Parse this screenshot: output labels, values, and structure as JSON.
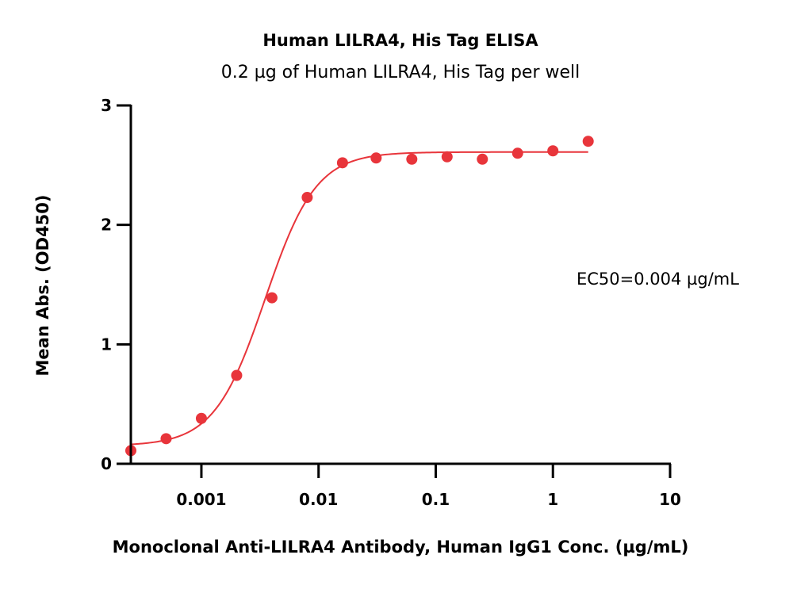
{
  "chart_data": {
    "type": "scatter",
    "title": "Human LILRA4, His Tag ELISA",
    "subtitle": "0.2 µg of Human LILRA4, His Tag per well",
    "xlabel": "Monoclonal Anti-LILRA4 Antibody, Human IgG1 Conc. (µg/mL)",
    "ylabel": "Mean Abs. (OD450)",
    "x_scale": "log",
    "xlim": [
      0.00025,
      10
    ],
    "ylim": [
      0,
      3
    ],
    "x_ticks": [
      0.001,
      0.01,
      0.1,
      1,
      10
    ],
    "x_tick_labels": [
      "0.001",
      "0.01",
      "0.1",
      "1",
      "10"
    ],
    "y_ticks": [
      0,
      1,
      2,
      3
    ],
    "y_tick_labels": [
      "0",
      "1",
      "2",
      "3"
    ],
    "annotation": "EC50=0.004 µg/mL",
    "color": "#e8353b",
    "x": [
      0.00025,
      0.0005,
      0.001,
      0.002,
      0.004,
      0.008,
      0.016,
      0.031,
      0.0625,
      0.125,
      0.25,
      0.5,
      1,
      2
    ],
    "y": [
      0.11,
      0.21,
      0.38,
      0.74,
      1.39,
      2.23,
      2.52,
      2.56,
      2.55,
      2.57,
      2.55,
      2.6,
      2.62,
      2.7
    ],
    "fit": {
      "bottom": 0.15,
      "top": 2.61,
      "ec50": 0.0035,
      "hill": 2.0
    }
  }
}
